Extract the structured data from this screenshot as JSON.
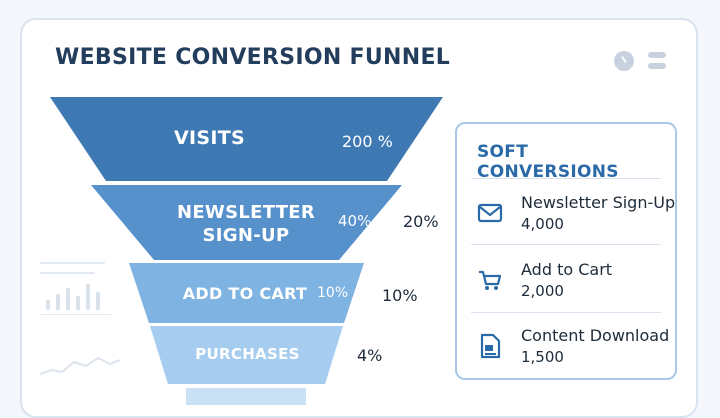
{
  "header": {
    "title": "WEBSITE CONVERSION FUNNEL",
    "icons": [
      "clock-icon",
      "menu-icon"
    ]
  },
  "funnel": {
    "stages": [
      {
        "label": "VISITS",
        "value": "200 %"
      },
      {
        "label": "NEWSLETTER SIGN-UP",
        "value": "40%",
        "side_value": "20%"
      },
      {
        "label": "ADD TO CART",
        "value": "10%",
        "side_value": "10%"
      },
      {
        "label": "PURCHASES",
        "side_value": "4%"
      },
      {
        "label": ""
      }
    ],
    "colors": [
      "#3f79b3",
      "#5791cc",
      "#7fb3e2",
      "#a6cdef",
      "#c9e0f5"
    ]
  },
  "panel": {
    "title": "SOFT CONVERSIONS",
    "items": [
      {
        "icon": "envelope-icon",
        "name": "Newsletter Sign-Up",
        "value": "4,000"
      },
      {
        "icon": "cart-icon",
        "name": "Add to Cart",
        "value": "2,000"
      },
      {
        "icon": "document-icon",
        "name": "Content Download",
        "value": "1,500"
      }
    ],
    "accent": "#2b6aa8"
  }
}
